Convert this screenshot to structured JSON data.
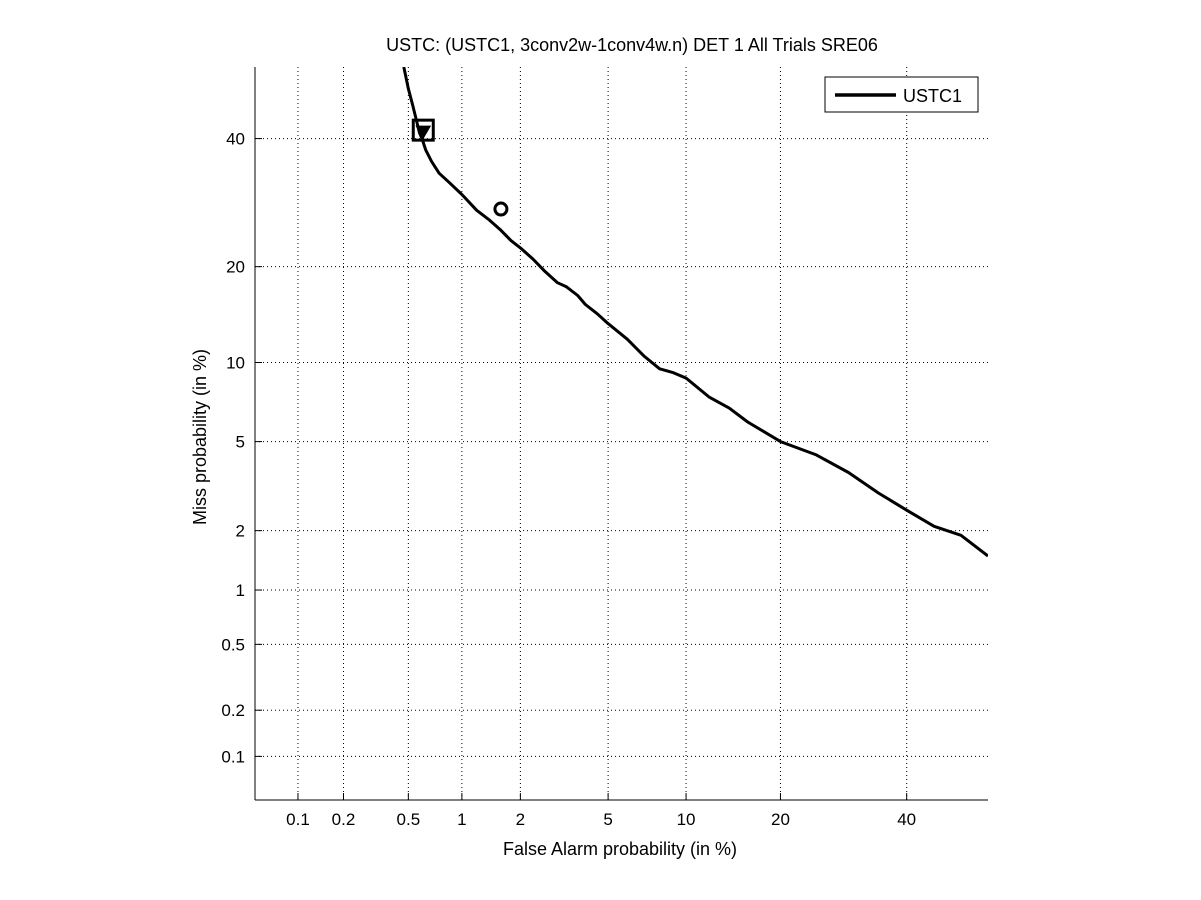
{
  "chart_data": {
    "type": "line",
    "title": "USTC: (USTC1, 3conv2w-1conv4w.n) DET 1 All Trials SRE06",
    "xlabel": "False Alarm probability (in %)",
    "ylabel": "Miss probability (in %)",
    "scale": "normal-deviate (probit)",
    "grid": true,
    "legend_position": "top-right",
    "xlim": [
      0.05,
      55
    ],
    "ylim": [
      0.05,
      53
    ],
    "x_ticks": [
      {
        "value": 0.1,
        "label": "0.1"
      },
      {
        "value": 0.2,
        "label": "0.2"
      },
      {
        "value": 0.5,
        "label": "0.5"
      },
      {
        "value": 1,
        "label": "1"
      },
      {
        "value": 2,
        "label": "2"
      },
      {
        "value": 5,
        "label": "5"
      },
      {
        "value": 10,
        "label": "10"
      },
      {
        "value": 20,
        "label": "20"
      },
      {
        "value": 40,
        "label": "40"
      }
    ],
    "y_ticks": [
      {
        "value": 0.1,
        "label": "0.1"
      },
      {
        "value": 0.2,
        "label": "0.2"
      },
      {
        "value": 0.5,
        "label": "0.5"
      },
      {
        "value": 1,
        "label": "1"
      },
      {
        "value": 2,
        "label": "2"
      },
      {
        "value": 5,
        "label": "5"
      },
      {
        "value": 10,
        "label": "10"
      },
      {
        "value": 20,
        "label": "20"
      },
      {
        "value": 40,
        "label": "40"
      }
    ],
    "series": [
      {
        "name": "USTC1",
        "color": "#000000",
        "x": [
          0.47,
          0.5,
          0.53,
          0.56,
          0.58,
          0.6,
          0.63,
          0.68,
          0.75,
          0.85,
          1.0,
          1.2,
          1.4,
          1.6,
          1.8,
          2.0,
          2.3,
          2.6,
          3.0,
          3.3,
          3.7,
          4.0,
          4.5,
          5.0,
          6.0,
          7.0,
          8.0,
          9.0,
          10.0,
          12.0,
          14.0,
          16.0,
          20.0,
          25.0,
          30.0,
          35.0,
          40.0,
          45.0,
          50.0,
          55.0
        ],
        "y": [
          53.0,
          49.0,
          46.0,
          43.0,
          41.0,
          40.0,
          38.0,
          36.0,
          34.0,
          32.5,
          30.5,
          28.0,
          26.5,
          25.0,
          23.5,
          22.5,
          21.0,
          19.5,
          18.0,
          17.5,
          16.5,
          15.5,
          14.5,
          13.5,
          12.0,
          10.5,
          9.5,
          9.2,
          8.8,
          7.5,
          6.8,
          6.0,
          5.0,
          4.4,
          3.7,
          3.0,
          2.5,
          2.1,
          1.9,
          1.5
        ]
      }
    ],
    "markers": [
      {
        "shape": "square",
        "x": 0.61,
        "y": 41.5
      },
      {
        "shape": "triangle-down",
        "x": 0.61,
        "y": 41.5
      },
      {
        "shape": "circle",
        "x": 1.6,
        "y": 28.2
      }
    ]
  }
}
